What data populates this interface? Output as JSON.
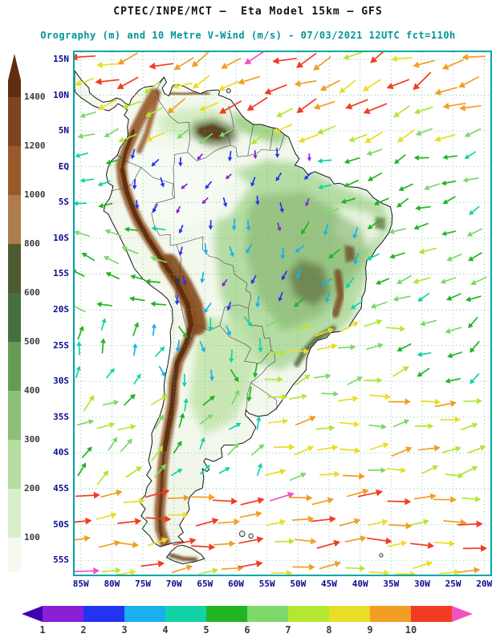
{
  "header": {
    "title": "CPTEC/INPE/MCT —  Eta Model 15km — GFS",
    "subtitle": "Orography (m) and 10 Metre V-Wind (m/s) - 07/03/2021 12UTC fct=110h"
  },
  "colors": {
    "title": "#111111",
    "subtitle": "#009595",
    "frame": "#00a6a6",
    "geo_tick": "#0b0b8f",
    "scale_tick": "#3a3a3a",
    "grid": "#5fb08a",
    "coast": "#15151a",
    "border": "#3c3c46",
    "land_base": "#f2f8ec",
    "ocean": "#ffffff"
  },
  "axes": {
    "lat_tick_labels": [
      "15N",
      "10N",
      "5N",
      "EQ",
      "5S",
      "10S",
      "15S",
      "20S",
      "25S",
      "30S",
      "35S",
      "40S",
      "45S",
      "50S",
      "55S"
    ],
    "lat_tick_values": [
      15,
      10,
      5,
      0,
      -5,
      -10,
      -15,
      -20,
      -25,
      -30,
      -35,
      -40,
      -45,
      -50,
      -55
    ],
    "lon_tick_labels": [
      "85W",
      "80W",
      "75W",
      "70W",
      "65W",
      "60W",
      "55W",
      "50W",
      "45W",
      "40W",
      "35W",
      "30W",
      "25W",
      "20W"
    ],
    "lon_tick_values": [
      -85,
      -80,
      -75,
      -70,
      -65,
      -60,
      -55,
      -50,
      -45,
      -40,
      -35,
      -30,
      -25,
      -20
    ],
    "lon_range": [
      -86,
      -19
    ],
    "lat_range": [
      -57,
      16
    ]
  },
  "chart_data": {
    "type": "heatmap",
    "title": "CPTEC/INPE/MCT — Eta Model 15km — GFS",
    "subtitle": "Orography (m) and 10 Metre V-Wind (m/s) - 07/03/2021 12UTC fct=110h",
    "center": "CPTEC/INPE/MCT",
    "model": "Eta Model 15km",
    "boundary_condition": "GFS",
    "variable": "Orography (m) and 10 Metre V-Wind (m/s)",
    "valid": "07/03/2021 12UTC",
    "forecast": "fct=110h",
    "projection": "lat-lon, South America",
    "graticule_deg": 5,
    "layers": [
      {
        "name": "orography",
        "units": "m",
        "levels": [
          100,
          200,
          300,
          400,
          500,
          600,
          800,
          1000,
          1200,
          1400
        ],
        "palette_low_to_high": [
          "#f5faf0",
          "#d9efca",
          "#b5dda2",
          "#8cc078",
          "#659c55",
          "#477041",
          "#4e5c30",
          "#ac7c4a",
          "#985a2a",
          "#7b4520",
          "#5f2d10"
        ],
        "summary": "Andes cordillera >1400 m along the Pacific margin; Guiana and Brazilian highlands 600-1400 m; Amazon, Orinoco, Chaco and Patagonian lowlands <300 m"
      },
      {
        "name": "10m-v-wind-vectors",
        "units": "m/s",
        "levels": [
          1,
          2,
          3,
          4,
          5,
          6,
          7,
          8,
          9,
          10
        ],
        "palette_low_to_high": [
          "#3f00b0",
          "#8a1fd6",
          "#2433f0",
          "#18b0f0",
          "#14d2a8",
          "#22b422",
          "#7cd96a",
          "#b4e632",
          "#e8de26",
          "#f29e24",
          "#f23c22",
          "#f052c0"
        ],
        "region_format": [
          "lon_min",
          "lon_max",
          "lat_min",
          "lat_max",
          "direction_deg_math",
          "speed_ms",
          "direction_spread_deg",
          "speed_spread_ms"
        ],
        "regions": [
          [
            -86,
            -19,
            8,
            16,
            205,
            9.2,
            45,
            4.0
          ],
          [
            -86,
            -55,
            3,
            8,
            205,
            7.0,
            30,
            2.6
          ],
          [
            -55,
            -19,
            3,
            8,
            203,
            7.8,
            30,
            2.6
          ],
          [
            -86,
            -78,
            -8,
            3,
            185,
            4.6,
            30,
            2.0
          ],
          [
            -78,
            -48,
            -8,
            3,
            252,
            2.2,
            70,
            1.7
          ],
          [
            -48,
            -19,
            -8,
            3,
            200,
            5.4,
            40,
            2.2
          ],
          [
            -86,
            -72,
            -20,
            -8,
            162,
            5.8,
            30,
            2.2
          ],
          [
            -72,
            -50,
            -20,
            -8,
            262,
            3.0,
            55,
            2.2
          ],
          [
            -50,
            -38,
            -20,
            -8,
            235,
            4.4,
            45,
            2.2
          ],
          [
            -38,
            -19,
            -20,
            -8,
            208,
            6.0,
            35,
            2.2
          ],
          [
            -86,
            -72,
            -32,
            -20,
            70,
            5.0,
            60,
            2.8
          ],
          [
            -72,
            -55,
            -32,
            -20,
            285,
            4.2,
            50,
            2.4
          ],
          [
            -55,
            -33,
            -32,
            -20,
            15,
            7.4,
            40,
            2.6
          ],
          [
            -33,
            -19,
            -32,
            -20,
            205,
            5.4,
            50,
            2.4
          ],
          [
            -86,
            -70,
            -44,
            -32,
            35,
            6.6,
            50,
            2.8
          ],
          [
            -70,
            -55,
            -44,
            -32,
            55,
            5.2,
            55,
            2.8
          ],
          [
            -55,
            -19,
            -44,
            -32,
            10,
            8.0,
            35,
            2.8
          ],
          [
            -86,
            -19,
            -58,
            -44,
            5,
            9.4,
            28,
            3.4
          ]
        ]
      }
    ]
  }
}
